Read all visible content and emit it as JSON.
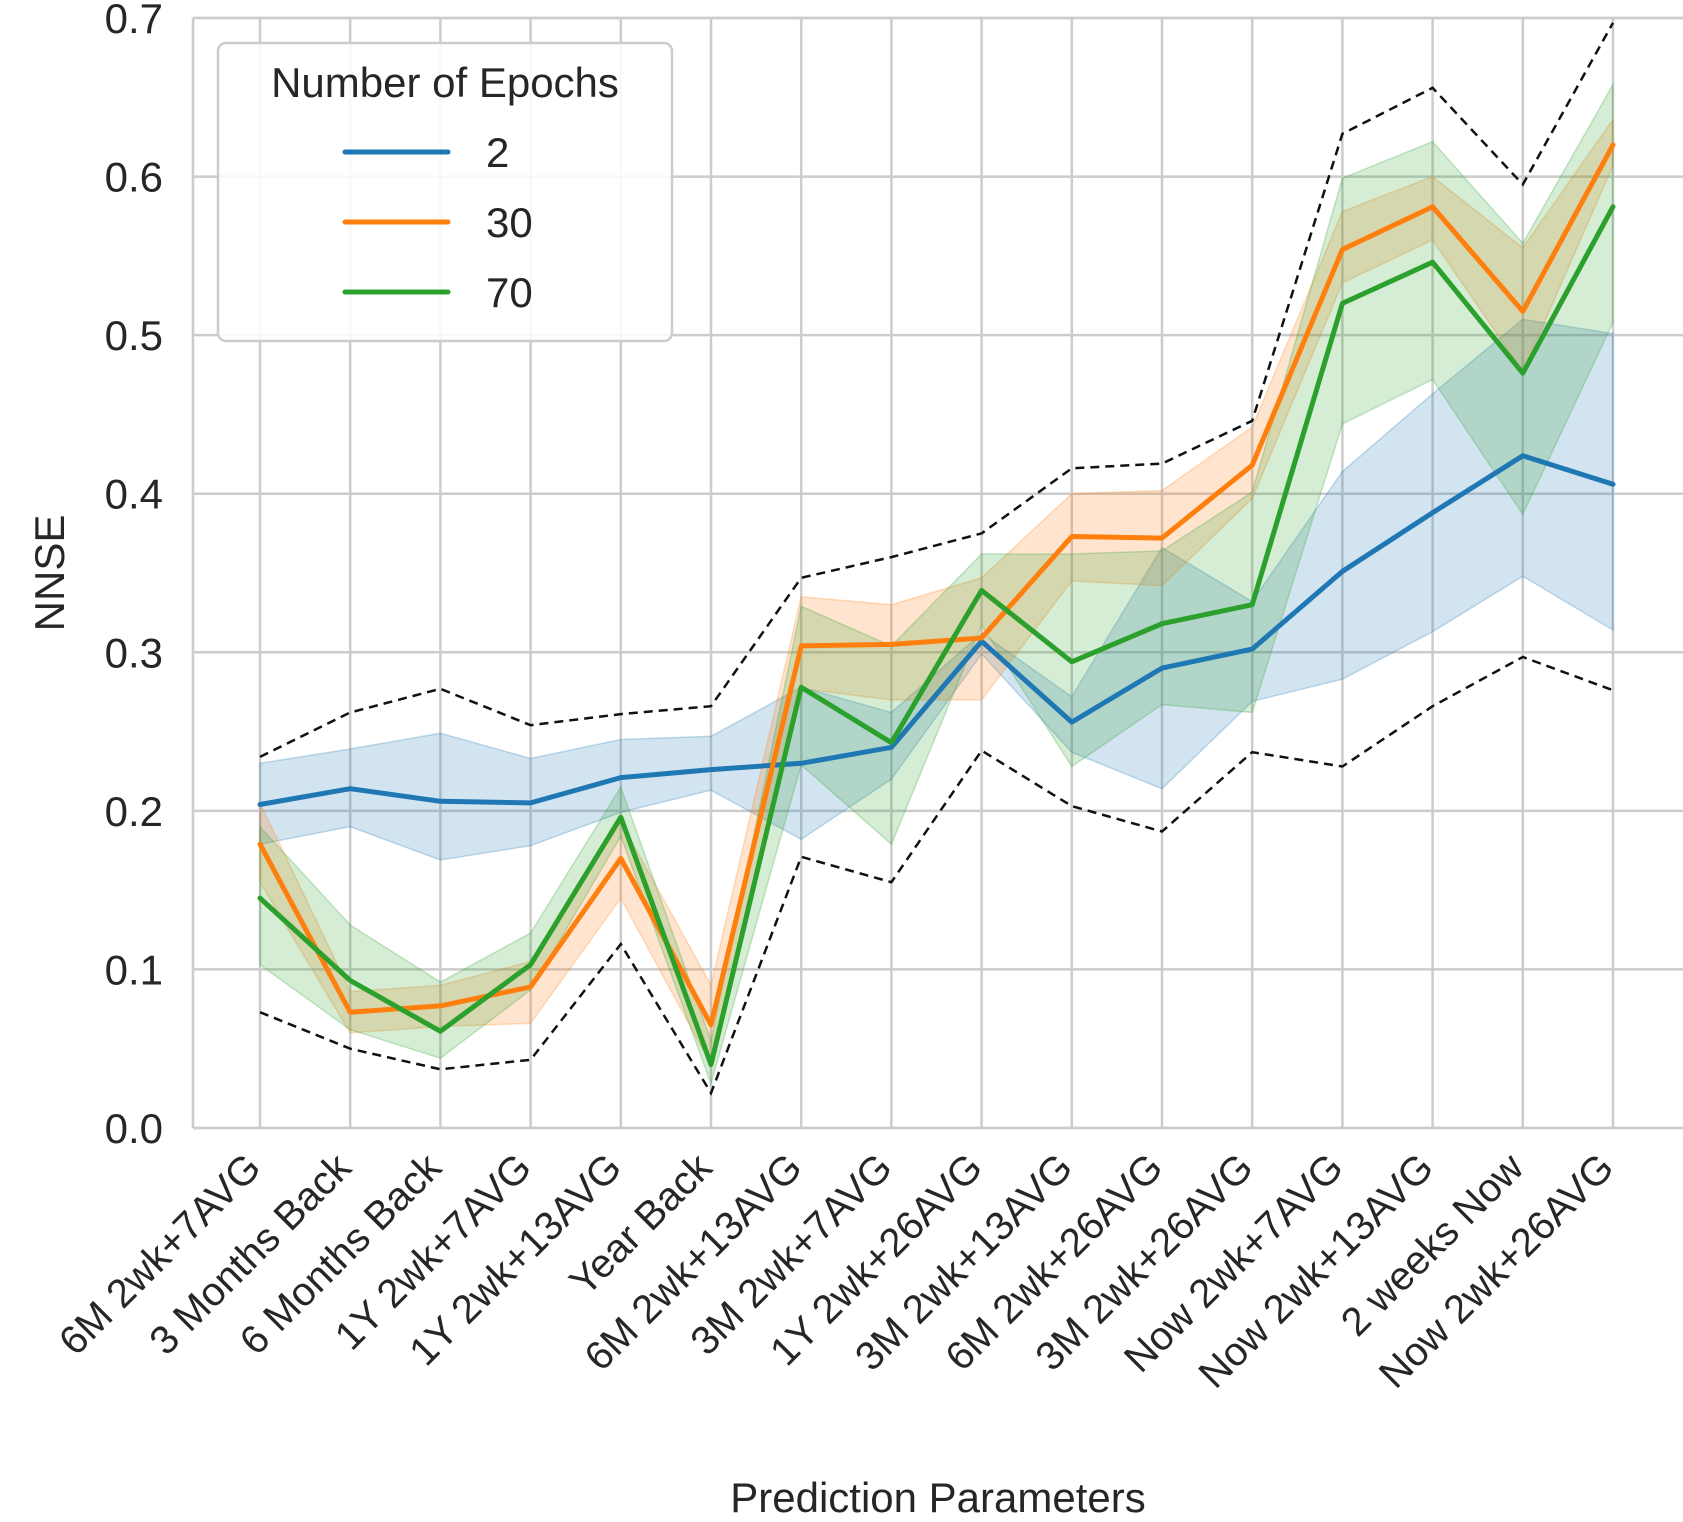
{
  "chart_data": {
    "type": "line",
    "title": "",
    "xlabel": "Prediction Parameters",
    "ylabel": "NNSE",
    "ylim": [
      0.0,
      0.7
    ],
    "yticks": [
      "0.0",
      "0.1",
      "0.2",
      "0.3",
      "0.4",
      "0.5",
      "0.6",
      "0.7"
    ],
    "grid": true,
    "legend": {
      "title": "Number of Epochs",
      "placement": "top-left"
    },
    "categories": [
      "6M 2wk+7AVG",
      "3 Months Back",
      "6 Months Back",
      "1Y 2wk+7AVG",
      "1Y 2wk+13AVG",
      "Year Back",
      "6M 2wk+13AVG",
      "3M 2wk+7AVG",
      "1Y 2wk+26AVG",
      "3M 2wk+13AVG",
      "6M 2wk+26AVG",
      "3M 2wk+26AVG",
      "Now 2wk+7AVG",
      "Now 2wk+13AVG",
      "2 weeks Now",
      "Now 2wk+26AVG"
    ],
    "series": [
      {
        "name": "2",
        "color": "#1f77b4",
        "values": [
          0.204,
          0.214,
          0.206,
          0.205,
          0.221,
          0.226,
          0.23,
          0.24,
          0.307,
          0.256,
          0.29,
          0.302,
          0.351,
          0.388,
          0.424,
          0.406
        ],
        "lower": [
          0.179,
          0.19,
          0.169,
          0.178,
          0.199,
          0.213,
          0.182,
          0.22,
          0.299,
          0.237,
          0.214,
          0.269,
          0.283,
          0.313,
          0.348,
          0.314
        ],
        "upper": [
          0.23,
          0.239,
          0.249,
          0.233,
          0.245,
          0.247,
          0.278,
          0.262,
          0.312,
          0.272,
          0.366,
          0.332,
          0.414,
          0.463,
          0.51,
          0.501
        ]
      },
      {
        "name": "30",
        "color": "#ff7f0e",
        "values": [
          0.179,
          0.073,
          0.077,
          0.089,
          0.17,
          0.065,
          0.304,
          0.305,
          0.309,
          0.373,
          0.372,
          0.418,
          0.554,
          0.581,
          0.515,
          0.62
        ],
        "lower": [
          0.155,
          0.06,
          0.064,
          0.066,
          0.145,
          0.04,
          0.277,
          0.27,
          0.27,
          0.345,
          0.342,
          0.397,
          0.533,
          0.56,
          0.477,
          0.607
        ],
        "upper": [
          0.205,
          0.086,
          0.09,
          0.105,
          0.193,
          0.09,
          0.335,
          0.33,
          0.347,
          0.4,
          0.402,
          0.442,
          0.578,
          0.6,
          0.555,
          0.636
        ]
      },
      {
        "name": "70",
        "color": "#2ca02c",
        "values": [
          0.145,
          0.093,
          0.061,
          0.103,
          0.196,
          0.04,
          0.278,
          0.243,
          0.339,
          0.294,
          0.318,
          0.33,
          0.52,
          0.546,
          0.476,
          0.581
        ],
        "lower": [
          0.103,
          0.062,
          0.044,
          0.087,
          0.184,
          0.028,
          0.229,
          0.179,
          0.317,
          0.228,
          0.267,
          0.262,
          0.444,
          0.472,
          0.387,
          0.508
        ],
        "upper": [
          0.19,
          0.128,
          0.092,
          0.123,
          0.215,
          0.055,
          0.329,
          0.304,
          0.362,
          0.362,
          0.364,
          0.401,
          0.599,
          0.622,
          0.558,
          0.658
        ]
      }
    ],
    "dashed_envelope": {
      "upper": [
        0.234,
        0.262,
        0.277,
        0.254,
        0.261,
        0.266,
        0.347,
        0.36,
        0.375,
        0.416,
        0.419,
        0.446,
        0.627,
        0.656,
        0.595,
        0.697
      ],
      "lower": [
        0.073,
        0.05,
        0.037,
        0.043,
        0.116,
        0.022,
        0.171,
        0.155,
        0.238,
        0.203,
        0.187,
        0.237,
        0.228,
        0.266,
        0.297,
        0.276
      ]
    }
  }
}
